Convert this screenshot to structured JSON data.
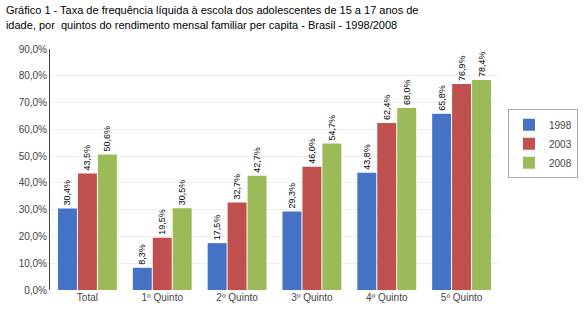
{
  "chart_data": {
    "type": "bar",
    "title": "Gráfico 1 - Taxa de frequência líquida à escola dos adolescentes de 15 a 17 anos de idade, por  quintos do rendimento mensal familiar per capita - Brasil - 1998/2008",
    "categories": [
      "Total",
      "1º Quinto",
      "2º Quinto",
      "3º Quinto",
      "4º Quinto",
      "5º Quinto"
    ],
    "series": [
      {
        "name": "1998",
        "color": "#4472C4",
        "values": [
          30.4,
          8.3,
          17.5,
          29.3,
          43.8,
          65.8
        ],
        "value_labels": [
          "30,4%",
          "8,3%",
          "17,5%",
          "29,3%",
          "43,8%",
          "65,8%"
        ]
      },
      {
        "name": "2003",
        "color": "#C0504D",
        "values": [
          43.5,
          19.5,
          32.7,
          46.0,
          62.4,
          76.9
        ],
        "value_labels": [
          "43,5%",
          "19,5%",
          "32,7%",
          "46,0%",
          "62,4%",
          "76,9%"
        ]
      },
      {
        "name": "2008",
        "color": "#9BBB59",
        "values": [
          50.6,
          30.5,
          42.7,
          54.7,
          68.0,
          78.4
        ],
        "value_labels": [
          "50,6%",
          "30,5%",
          "42,7%",
          "54,7%",
          "68,0%",
          "78,4%"
        ]
      }
    ],
    "ylim": [
      0,
      90
    ],
    "yticks": [
      {
        "value": 0,
        "label": "0,0%"
      },
      {
        "value": 10,
        "label": "10,0%"
      },
      {
        "value": 20,
        "label": "20,0%"
      },
      {
        "value": 30,
        "label": "30,0%"
      },
      {
        "value": 40,
        "label": "40,0%"
      },
      {
        "value": 50,
        "label": "50,0%"
      },
      {
        "value": 60,
        "label": "60,0%"
      },
      {
        "value": 70,
        "label": "70,0%"
      },
      {
        "value": 80,
        "label": "80,0%"
      },
      {
        "value": 90,
        "label": "90,0%"
      }
    ],
    "grid": true,
    "legend": "right",
    "data_labels": true
  }
}
